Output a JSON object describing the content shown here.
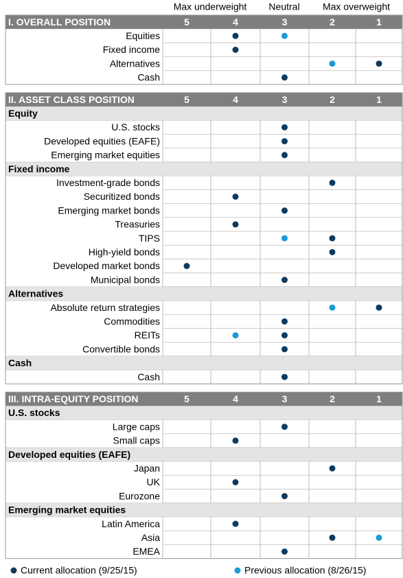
{
  "header": {
    "left": "Max underweight",
    "middle": "Neutral",
    "right": "Max overweight"
  },
  "scale": [
    5,
    4,
    3,
    2,
    1
  ],
  "sections": [
    {
      "title": "I. OVERALL POSITION",
      "groups": [
        {
          "rows": [
            {
              "label": "Equities",
              "current": 4,
              "previous": 3
            },
            {
              "label": "Fixed income",
              "current": 4
            },
            {
              "label": "Alternatives",
              "current": 1,
              "previous": 2
            },
            {
              "label": "Cash",
              "current": 3
            }
          ]
        }
      ]
    },
    {
      "title": "II. ASSET CLASS POSITION",
      "groups": [
        {
          "title": "Equity",
          "rows": [
            {
              "label": "U.S. stocks",
              "current": 3
            },
            {
              "label": "Developed equities (EAFE)",
              "current": 3
            },
            {
              "label": "Emerging market equities",
              "current": 3
            }
          ]
        },
        {
          "title": "Fixed income",
          "rows": [
            {
              "label": "Investment-grade bonds",
              "current": 2
            },
            {
              "label": "Securitized bonds",
              "current": 4
            },
            {
              "label": "Emerging market bonds",
              "current": 3
            },
            {
              "label": "Treasuries",
              "current": 4
            },
            {
              "label": "TIPS",
              "current": 2,
              "previous": 3
            },
            {
              "label": "High-yield bonds",
              "current": 2
            },
            {
              "label": "Developed market bonds",
              "current": 5
            },
            {
              "label": "Municipal bonds",
              "current": 3
            }
          ]
        },
        {
          "title": "Alternatives",
          "rows": [
            {
              "label": "Absolute return strategies",
              "current": 1,
              "previous": 2
            },
            {
              "label": "Commodities",
              "current": 3
            },
            {
              "label": "REITs",
              "current": 3,
              "previous": 4
            },
            {
              "label": "Convertible bonds",
              "current": 3
            }
          ]
        },
        {
          "title": "Cash",
          "rows": [
            {
              "label": "Cash",
              "current": 3
            }
          ]
        }
      ]
    },
    {
      "title": "III. INTRA-EQUITY POSITION",
      "groups": [
        {
          "title": "U.S. stocks",
          "rows": [
            {
              "label": "Large caps",
              "current": 3
            },
            {
              "label": "Small caps",
              "current": 4
            }
          ]
        },
        {
          "title": "Developed equities (EAFE)",
          "rows": [
            {
              "label": "Japan",
              "current": 2
            },
            {
              "label": "UK",
              "current": 4
            },
            {
              "label": "Eurozone",
              "current": 3
            }
          ]
        },
        {
          "title": "Emerging market equities",
          "rows": [
            {
              "label": "Latin America",
              "current": 4
            },
            {
              "label": "Asia",
              "current": 2,
              "previous": 1
            },
            {
              "label": "EMEA",
              "current": 3
            }
          ]
        }
      ]
    }
  ],
  "legend": {
    "current": "Current allocation (9/25/15)",
    "previous": "Previous allocation (8/26/15)",
    "current_color": "#0e3a5e",
    "previous_color": "#1b9ad7"
  }
}
